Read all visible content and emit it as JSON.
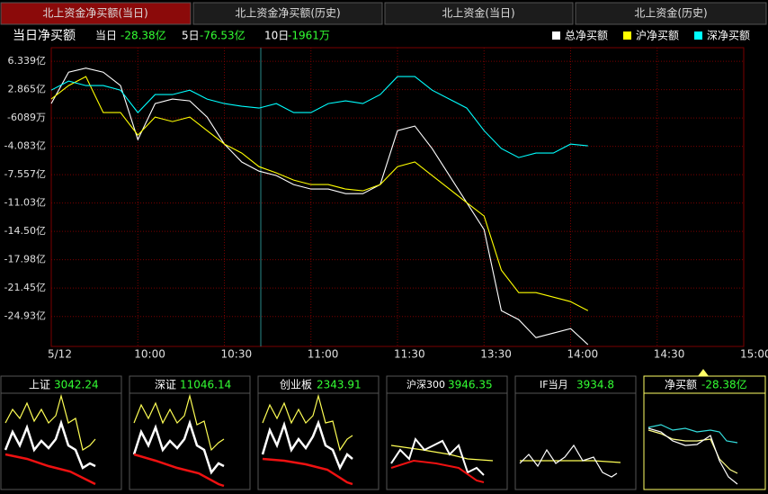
{
  "tabs": [
    "北上资金净买额(当日)",
    "北上资金净买额(历史)",
    "北上资金(当日)",
    "北上资金(历史)"
  ],
  "header": {
    "title": "当日净买额",
    "items": [
      {
        "label": "当日",
        "value": "-28.38亿"
      },
      {
        "label": "5日",
        "value": "-76.53亿"
      },
      {
        "label": "10日",
        "value": "-1961万"
      }
    ]
  },
  "chart_data": {
    "type": "line",
    "x": [
      0,
      6,
      12,
      18,
      24,
      30,
      36,
      42,
      48,
      54,
      60,
      66,
      72,
      78,
      84,
      90,
      96,
      102,
      108,
      114,
      120,
      126,
      132,
      138,
      144,
      150,
      156,
      162,
      168,
      174,
      180,
      186
    ],
    "xlim": [
      0,
      240
    ],
    "xticks": [
      {
        "value": 0,
        "label": "5/12"
      },
      {
        "value": 30,
        "label": "10:00"
      },
      {
        "value": 60,
        "label": "10:30"
      },
      {
        "value": 90,
        "label": "11:00"
      },
      {
        "value": 120,
        "label": "11:30"
      },
      {
        "value": 150,
        "label": "13:30"
      },
      {
        "value": 180,
        "label": "14:00"
      },
      {
        "value": 210,
        "label": "14:30"
      },
      {
        "value": 240,
        "label": "15:00"
      }
    ],
    "ylim": [
      -28.6,
      8.0
    ],
    "yticks": [
      {
        "value": 6.339,
        "label": "6.339亿"
      },
      {
        "value": 2.865,
        "label": "2.865亿"
      },
      {
        "value": -0.6089,
        "label": "-6089万"
      },
      {
        "value": -4.083,
        "label": "-4.083亿"
      },
      {
        "value": -7.557,
        "label": "-7.557亿"
      },
      {
        "value": -11.03,
        "label": "-11.03亿"
      },
      {
        "value": -14.5,
        "label": "-14.50亿"
      },
      {
        "value": -17.98,
        "label": "-17.98亿"
      },
      {
        "value": -21.45,
        "label": "-21.45亿"
      },
      {
        "value": -24.93,
        "label": "-24.93亿"
      }
    ],
    "grid": true,
    "legend": "top-right",
    "series": [
      {
        "name": "总净买额",
        "color": "#ffffff",
        "values": [
          1.15,
          5.0,
          5.5,
          5.0,
          3.36,
          -3.26,
          1.15,
          1.71,
          1.49,
          -0.5,
          -3.81,
          -6.0,
          -7.12,
          -7.67,
          -8.77,
          -9.32,
          -9.32,
          -9.88,
          -9.88,
          -8.77,
          -2.16,
          -1.6,
          -4.36,
          -7.67,
          -10.98,
          -14.29,
          -24.21,
          -25.32,
          -27.52,
          -26.97,
          -26.42,
          -28.38
        ]
      },
      {
        "name": "沪净买额",
        "color": "#ffff00",
        "values": [
          1.71,
          3.36,
          4.46,
          0.05,
          0.05,
          -2.7,
          -0.5,
          -1.05,
          -0.5,
          -2.16,
          -3.81,
          -4.91,
          -6.57,
          -7.34,
          -8.22,
          -8.77,
          -8.77,
          -9.32,
          -9.54,
          -8.77,
          -6.57,
          -6.0,
          -7.67,
          -9.32,
          -10.98,
          -12.63,
          -19.25,
          -22.01,
          -22.01,
          -22.56,
          -23.11,
          -24.21
        ]
      },
      {
        "name": "深净买额",
        "color": "#00ffff",
        "values": [
          2.8,
          3.91,
          3.36,
          3.36,
          2.8,
          0.05,
          2.26,
          2.26,
          2.8,
          1.71,
          1.15,
          0.82,
          0.6,
          1.15,
          0.05,
          0.05,
          1.15,
          1.49,
          1.15,
          2.26,
          4.46,
          4.46,
          2.8,
          1.71,
          0.6,
          -2.16,
          -4.36,
          -5.46,
          -4.91,
          -4.91,
          -3.81,
          -4.03
        ]
      }
    ]
  },
  "mini_panels": [
    {
      "label": "上证",
      "value": "3042.24"
    },
    {
      "label": "深证",
      "value": "11046.14"
    },
    {
      "label": "创业板",
      "value": "2343.91"
    },
    {
      "label": "沪深300",
      "value": "3946.35"
    },
    {
      "label": "IF当月",
      "value": "3934.8"
    },
    {
      "label": "净买额",
      "value": "-28.38亿"
    }
  ]
}
